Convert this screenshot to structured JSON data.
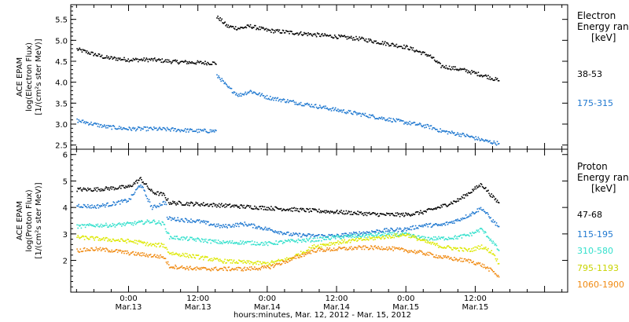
{
  "chart_data": [
    {
      "type": "scatter",
      "title": "",
      "ylabel_lines": [
        "ACE EPAM",
        "log(Electron Flux)",
        "[1/(cm²s ster MeV)]"
      ],
      "ylim": [
        2.4,
        5.85
      ],
      "yticks": [
        2.5,
        3.0,
        3.5,
        4.0,
        4.5,
        5.0,
        5.5
      ],
      "ytick_labels": [
        "2.5",
        "3.0",
        "3.5",
        "4.0",
        "4.5",
        "5.0",
        "5.5"
      ],
      "legend_title": [
        "Electron",
        "Energy ran",
        "[keV]"
      ],
      "x_units": "hours since 2012-03-12 00:00",
      "series": [
        {
          "name": "38–53",
          "color": "#000000",
          "x": [
            15,
            20,
            24,
            28,
            32,
            36,
            38.9,
            39.5,
            41,
            43,
            45,
            48,
            52,
            56,
            60,
            64,
            68,
            72,
            76,
            78,
            82,
            86,
            88
          ],
          "values": [
            4.8,
            4.6,
            4.55,
            4.55,
            4.5,
            4.48,
            4.47,
            5.55,
            5.35,
            5.3,
            5.35,
            5.25,
            5.2,
            5.15,
            5.1,
            5.05,
            4.95,
            4.85,
            4.65,
            4.4,
            4.3,
            4.15,
            4.05
          ]
        },
        {
          "name": "175–315",
          "color": "#1f78d0",
          "x": [
            15,
            20,
            24,
            28,
            32,
            36,
            38.9,
            39.5,
            41,
            43,
            45,
            48,
            52,
            56,
            60,
            64,
            68,
            72,
            76,
            78,
            82,
            86,
            88
          ],
          "values": [
            3.1,
            2.95,
            2.9,
            2.9,
            2.88,
            2.85,
            2.85,
            4.15,
            3.9,
            3.7,
            3.8,
            3.65,
            3.55,
            3.45,
            3.35,
            3.25,
            3.15,
            3.05,
            2.95,
            2.85,
            2.75,
            2.6,
            2.55
          ]
        }
      ]
    },
    {
      "type": "scatter",
      "title": "",
      "ylabel_lines": [
        "ACE EPAM",
        "log(Proton Flux)",
        "[1/(cm²s ster MeV)]"
      ],
      "ylim": [
        0.8,
        6.2
      ],
      "yticks": [
        2,
        3,
        4,
        5,
        6
      ],
      "ytick_labels": [
        "2",
        "3",
        "4",
        "5",
        "6"
      ],
      "legend_title": [
        "Proton",
        "Energy ran",
        "[keV]"
      ],
      "x_units": "hours since 2012-03-12 00:00",
      "series": [
        {
          "name": "47–68",
          "color": "#000000",
          "x": [
            15,
            18,
            21,
            24,
            26,
            28,
            30,
            31,
            36,
            40,
            44,
            48,
            52,
            56,
            60,
            64,
            68,
            72,
            75,
            78,
            81,
            83,
            85,
            87,
            88
          ],
          "values": [
            4.7,
            4.7,
            4.75,
            4.8,
            5.1,
            4.6,
            4.5,
            4.2,
            4.15,
            4.1,
            4.05,
            4.0,
            3.95,
            3.9,
            3.85,
            3.8,
            3.75,
            3.75,
            3.85,
            4.05,
            4.3,
            4.6,
            4.9,
            4.4,
            4.2
          ]
        },
        {
          "name": "115–195",
          "color": "#1f78d0",
          "x": [
            15,
            18,
            21,
            24,
            26,
            28,
            30,
            31,
            36,
            40,
            44,
            48,
            52,
            56,
            60,
            64,
            68,
            72,
            75,
            78,
            81,
            83,
            85,
            87,
            88
          ],
          "values": [
            4.1,
            4.05,
            4.15,
            4.3,
            4.9,
            4.0,
            4.2,
            3.6,
            3.5,
            3.3,
            3.4,
            3.2,
            3.0,
            2.95,
            2.95,
            3.05,
            3.15,
            3.2,
            3.35,
            3.35,
            3.55,
            3.75,
            4.0,
            3.5,
            3.3
          ]
        },
        {
          "name": "310–580",
          "color": "#33e0cc",
          "x": [
            15,
            18,
            21,
            24,
            26,
            28,
            30,
            31,
            36,
            40,
            44,
            48,
            52,
            56,
            60,
            64,
            68,
            72,
            75,
            78,
            81,
            83,
            85,
            87,
            88
          ],
          "values": [
            3.3,
            3.35,
            3.35,
            3.4,
            3.45,
            3.5,
            3.4,
            2.9,
            2.8,
            2.7,
            2.7,
            2.65,
            2.75,
            2.8,
            2.9,
            2.95,
            3.0,
            3.0,
            2.85,
            2.85,
            2.9,
            3.0,
            3.2,
            2.7,
            2.4
          ]
        },
        {
          "name": "795–1193",
          "color": "#dde800",
          "x": [
            15,
            18,
            21,
            24,
            26,
            28,
            30,
            31,
            36,
            40,
            44,
            48,
            52,
            56,
            60,
            64,
            68,
            72,
            75,
            78,
            81,
            83,
            85,
            87,
            88
          ],
          "values": [
            2.9,
            2.85,
            2.8,
            2.75,
            2.7,
            2.6,
            2.6,
            2.3,
            2.15,
            2.0,
            1.95,
            1.9,
            2.1,
            2.55,
            2.7,
            2.8,
            2.9,
            3.0,
            2.75,
            2.55,
            2.45,
            2.4,
            2.55,
            2.3,
            1.9
          ]
        },
        {
          "name": "1060–1900",
          "color": "#f08a12",
          "x": [
            15,
            18,
            21,
            24,
            26,
            28,
            30,
            31,
            36,
            40,
            44,
            48,
            52,
            56,
            60,
            64,
            68,
            72,
            75,
            78,
            81,
            83,
            85,
            87,
            88
          ],
          "values": [
            2.4,
            2.45,
            2.4,
            2.3,
            2.25,
            2.2,
            2.15,
            1.8,
            1.7,
            1.7,
            1.7,
            1.75,
            2.05,
            2.4,
            2.45,
            2.5,
            2.5,
            2.4,
            2.3,
            2.15,
            2.05,
            2.0,
            1.85,
            1.6,
            1.4
          ]
        }
      ]
    }
  ],
  "x_axis": {
    "xlim_hours": [
      14,
      100
    ],
    "major_ticks": [
      {
        "time": "0:00",
        "date": "Mar.13",
        "hour": 24
      },
      {
        "time": "12:00",
        "date": "Mar.13",
        "hour": 36
      },
      {
        "time": "0:00",
        "date": "Mar.14",
        "hour": 48
      },
      {
        "time": "12:00",
        "date": "Mar.14",
        "hour": 60
      },
      {
        "time": "0:00",
        "date": "Mar.15",
        "hour": 72
      },
      {
        "time": "12:00",
        "date": "Mar.15",
        "hour": 84
      }
    ],
    "xlabel": "hours:minutes, Mar. 12, 2012 - Mar. 15, 2012"
  },
  "panels": {
    "top": {
      "legend_title_1": "Electron",
      "legend_title_2": "Energy ran",
      "legend_title_3": "[keV]",
      "legend_1": "38-53",
      "legend_2": "175-315"
    },
    "bottom": {
      "legend_title_1": "Proton",
      "legend_title_2": "Energy ran",
      "legend_title_3": "[keV]",
      "legend_1": "47-68",
      "legend_2": "115-195",
      "legend_3": "310-580",
      "legend_4": "795-1193",
      "legend_5": "1060-1900"
    }
  }
}
